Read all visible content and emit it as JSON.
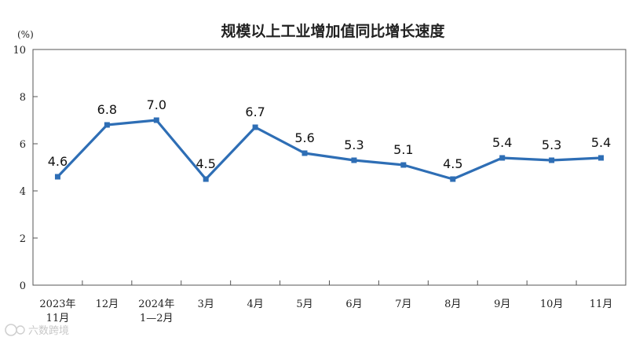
{
  "chart_data": {
    "type": "line",
    "title": "规模以上工业增加值同比增长速度",
    "ylabel": "(%)",
    "xlabel": "",
    "ylim": [
      0,
      10
    ],
    "yticks": [
      0,
      2,
      4,
      6,
      8,
      10
    ],
    "grid": false,
    "categories": [
      [
        "2023年",
        "11月"
      ],
      [
        "12月"
      ],
      [
        "2024年",
        "1—2月"
      ],
      [
        "3月"
      ],
      [
        "4月"
      ],
      [
        "5月"
      ],
      [
        "6月"
      ],
      [
        "7月"
      ],
      [
        "8月"
      ],
      [
        "9月"
      ],
      [
        "10月"
      ],
      [
        "11月"
      ]
    ],
    "series": [
      {
        "values": [
          4.6,
          6.8,
          7.0,
          4.5,
          6.7,
          5.6,
          5.3,
          5.1,
          4.5,
          5.4,
          5.3,
          5.4
        ],
        "data_labels": [
          "4.6",
          "6.8",
          "7.0",
          "4.5",
          "6.7",
          "5.6",
          "5.3",
          "5.1",
          "4.5",
          "5.4",
          "5.3",
          "5.4"
        ],
        "color": "#2e6eb5"
      }
    ],
    "axis_color": "#555555"
  },
  "watermark": {
    "text": "六数跨境"
  }
}
